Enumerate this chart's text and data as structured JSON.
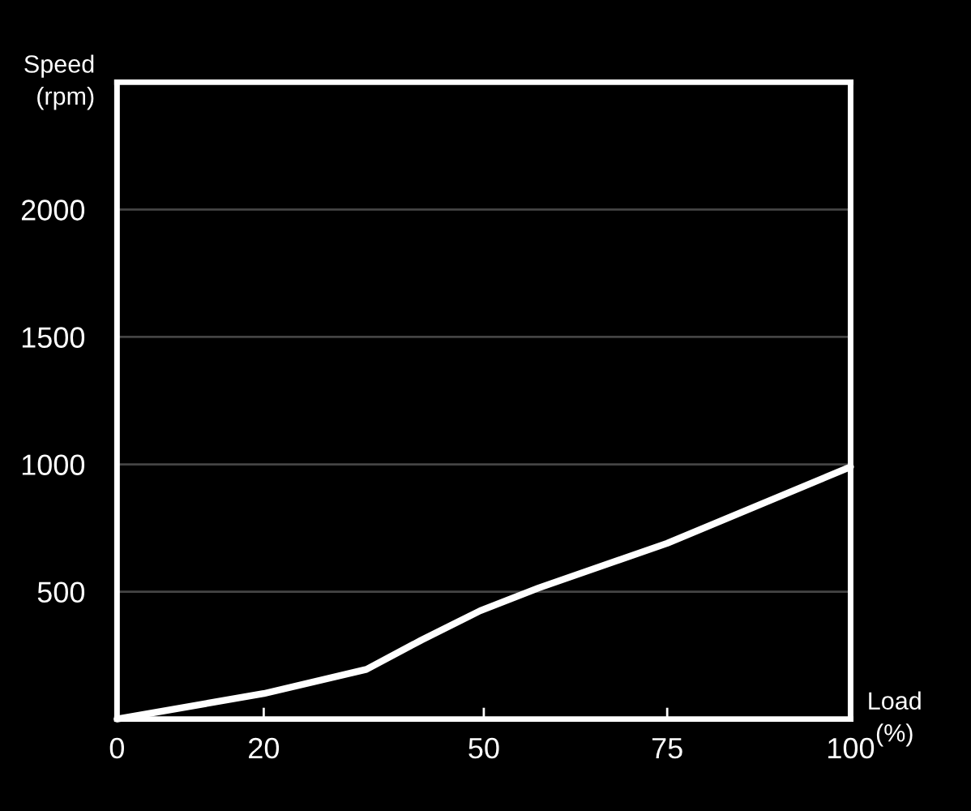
{
  "chart_data": {
    "type": "line",
    "xlabel": "Load\n(%)",
    "ylabel": "Speed\n(rpm)",
    "x": [
      0,
      20,
      34,
      41.5,
      49.5,
      57.5,
      75,
      100
    ],
    "series": [
      {
        "color": "#ffffff",
        "values": [
          0,
          100,
          195,
          310,
          425,
          515,
          690,
          990
        ]
      }
    ],
    "xlim": [
      0,
      100
    ],
    "xticks": [
      0,
      20,
      50,
      75,
      100
    ],
    "ylim": [
      0,
      2500
    ],
    "yticks": [
      500,
      1000,
      1500,
      2000
    ],
    "grid": "y",
    "marker": "none",
    "line_style": "solid"
  }
}
